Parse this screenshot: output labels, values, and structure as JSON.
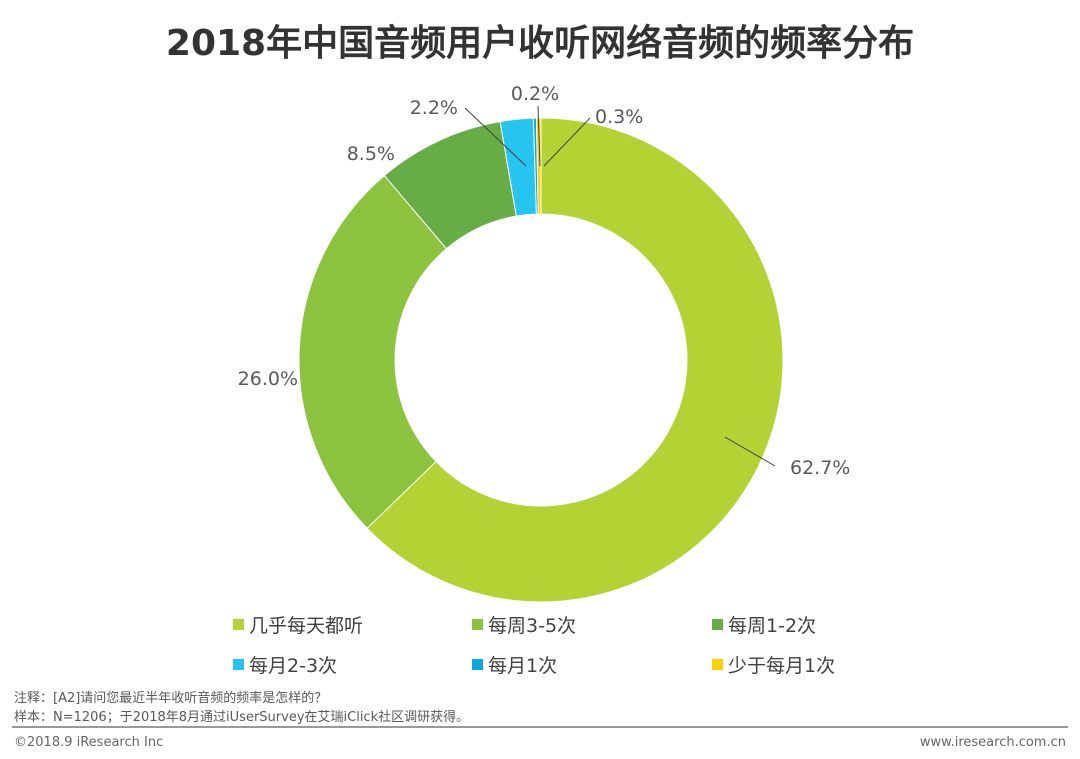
{
  "chart_data": {
    "type": "pie",
    "donut": true,
    "title": "2018年中国音频用户收听网络音频的频率分布",
    "categories": [
      "几乎每天都听",
      "每周3-5次",
      "每周1-2次",
      "每月2-3次",
      "每月1次",
      "少于每月1次"
    ],
    "values": [
      62.7,
      26.0,
      8.5,
      2.2,
      0.2,
      0.3
    ],
    "labels": [
      "62.7%",
      "26.0%",
      "8.5%",
      "2.2%",
      "0.2%",
      "0.3%"
    ],
    "colors": [
      "#b3d234",
      "#8bc33f",
      "#67ad45",
      "#27c4ef",
      "#0ea6de",
      "#fdd000"
    ],
    "legend_position": "bottom"
  },
  "footer": {
    "note": "注释：[A2]请问您最近半年收听音频的频率是怎样的？",
    "sample": "样本：N=1206；于2018年8月通过iUserSurvey在艾瑞iClick社区调研获得。",
    "copyright": "©2018.9 iResearch Inc",
    "website": "www.iresearch.com.cn"
  }
}
